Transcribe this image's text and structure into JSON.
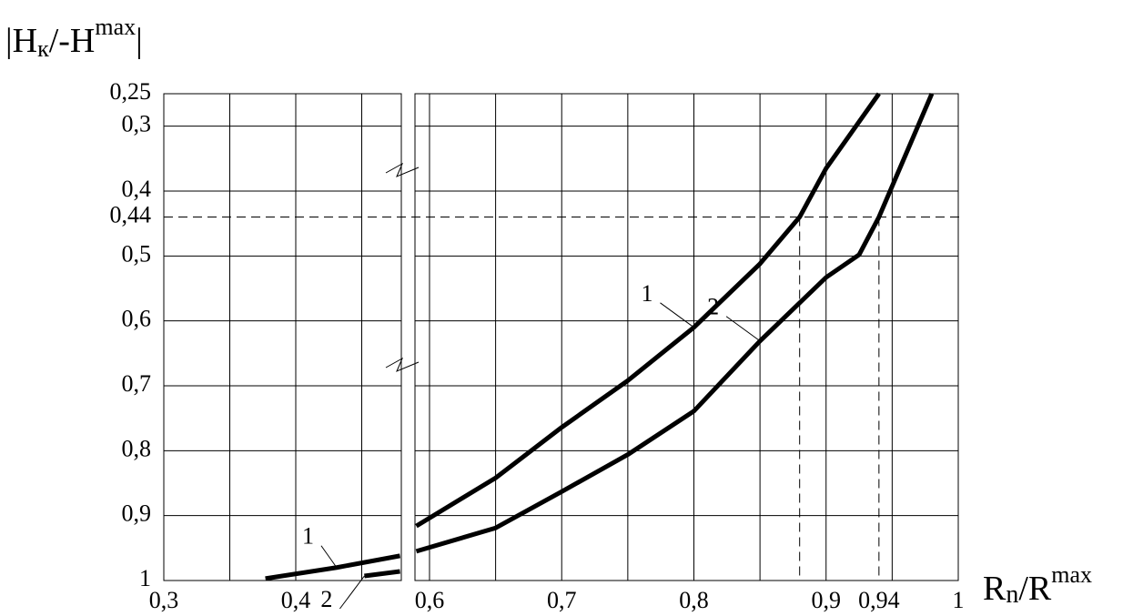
{
  "chart_data": [
    {
      "type": "line",
      "ylabel": {
        "main": "|H",
        "sub": "к",
        "mid": "/-H",
        "sup": "max",
        "end": "|"
      },
      "xlim": [
        0.3,
        0.48
      ],
      "ylim": [
        1,
        0.25
      ],
      "xticks": [
        {
          "value": 0.3,
          "label": "0,3"
        },
        {
          "value": 0.4,
          "label": "0,4"
        }
      ],
      "xgrid": [
        0.35,
        0.45
      ],
      "yticks": [
        {
          "value": 0.25,
          "label": "0,25"
        },
        {
          "value": 0.3,
          "label": "0,3"
        },
        {
          "value": 0.4,
          "label": "0,4"
        },
        {
          "value": 0.44,
          "label": "0,44"
        },
        {
          "value": 0.5,
          "label": "0,5"
        },
        {
          "value": 0.6,
          "label": "0,6"
        },
        {
          "value": 0.7,
          "label": "0,7"
        },
        {
          "value": 0.8,
          "label": "0,8"
        },
        {
          "value": 0.9,
          "label": "0,9"
        },
        1
      ],
      "grid": true,
      "series": [
        {
          "name": "1",
          "color": "#000000",
          "x": [
            0.377,
            0.431,
            0.479
          ],
          "values": [
            0.997,
            0.98,
            0.962
          ]
        },
        {
          "name": "2",
          "color": "#000000",
          "x": [
            0.452,
            0.479
          ],
          "values": [
            0.993,
            0.986
          ]
        }
      ]
    },
    {
      "type": "line",
      "xlabel": {
        "main": "R",
        "sub": "n",
        "mid": "/R",
        "sup": "max"
      },
      "xlim": [
        0.589,
        1
      ],
      "ylim": [
        1,
        0.25
      ],
      "xticks": [
        {
          "value": 0.6,
          "label": "0,6"
        },
        {
          "value": 0.7,
          "label": "0,7"
        },
        {
          "value": 0.8,
          "label": "0,8"
        },
        {
          "value": 0.9,
          "label": "0,9"
        },
        {
          "value": 0.94,
          "label": "0,94"
        },
        1
      ],
      "xgrid": [
        0.65,
        0.75,
        0.85,
        0.95
      ],
      "grid": true,
      "reference": {
        "y": 0.44,
        "x": [
          0.88,
          0.94
        ]
      },
      "series": [
        {
          "name": "1",
          "color": "#000000",
          "x": [
            0.59,
            0.65,
            0.7,
            0.75,
            0.8,
            0.85,
            0.88,
            0.9,
            0.94
          ],
          "values": [
            0.916,
            0.842,
            0.764,
            0.692,
            0.61,
            0.512,
            0.44,
            0.365,
            0.25
          ]
        },
        {
          "name": "2",
          "color": "#000000",
          "x": [
            0.59,
            0.65,
            0.7,
            0.75,
            0.8,
            0.85,
            0.9,
            0.925,
            0.94,
            0.98
          ],
          "values": [
            0.955,
            0.919,
            0.863,
            0.806,
            0.739,
            0.631,
            0.533,
            0.498,
            0.44,
            0.25
          ]
        }
      ]
    }
  ]
}
